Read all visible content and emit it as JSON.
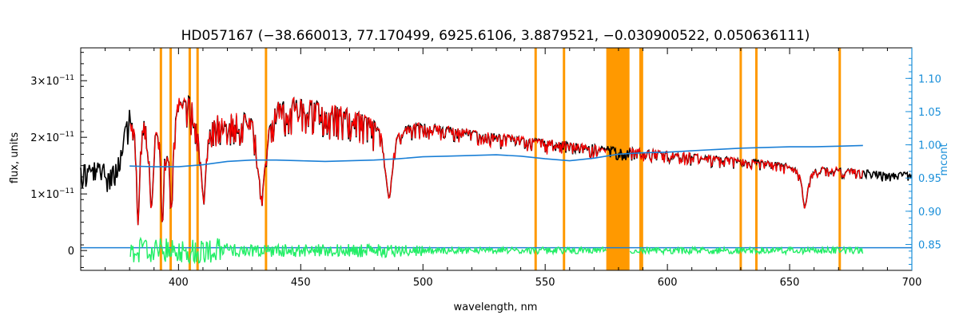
{
  "chart_data": {
    "type": "line",
    "title": "HD057167    (−38.660013, 77.170499, 6925.6106, 3.8879521, −0.030900522, 0.050636111)",
    "xlabel": "wavelength, nm",
    "ylabel": "flux, units",
    "y2label": "mcont",
    "xlim": [
      360,
      700
    ],
    "ylim": [
      -3.5e-12,
      3.58e-11
    ],
    "y2lim": [
      0.811,
      1.146
    ],
    "x_ticks": [
      400,
      450,
      500,
      550,
      600,
      650,
      700
    ],
    "x_tick_labels": [
      "400",
      "450",
      "500",
      "550",
      "600",
      "650",
      "700"
    ],
    "y_ticks": [
      0,
      1e-11,
      2e-11,
      3e-11
    ],
    "y_tick_labels": [
      {
        "mant": "0",
        "exp": ""
      },
      {
        "mant": "1×10",
        "exp": "−11"
      },
      {
        "mant": "2×10",
        "exp": "−11"
      },
      {
        "mant": "3×10",
        "exp": "−11"
      }
    ],
    "y2_ticks": [
      0.85,
      0.9,
      0.95,
      1.0,
      1.05,
      1.1
    ],
    "y2_tick_labels": [
      "0.85",
      "0.90",
      "0.95",
      "1.00",
      "1.05",
      "1.10"
    ],
    "grid": false,
    "colors": {
      "observed": "#000000",
      "model": "#ff0000",
      "residual": "#22ee66",
      "continuum": "#1a7fd6",
      "mask": "#ff9900",
      "right_axis": "#1a8fd9"
    },
    "mask_lines": [
      392.8,
      396.8,
      404.6,
      407.8,
      435.8,
      546.1,
      557.7,
      589.0,
      589.6,
      630.0,
      636.4,
      670.5
    ],
    "mask_band": [
      575.0,
      584.5
    ],
    "continuum": {
      "x": [
        380,
        390,
        400,
        410,
        420,
        430,
        440,
        450,
        460,
        470,
        480,
        490,
        500,
        510,
        520,
        530,
        540,
        550,
        560,
        570,
        580,
        590,
        600,
        610,
        620,
        630,
        640,
        650,
        660,
        670,
        680
      ],
      "y": [
        0.968,
        0.967,
        0.967,
        0.97,
        0.975,
        0.977,
        0.977,
        0.976,
        0.975,
        0.976,
        0.977,
        0.979,
        0.982,
        0.983,
        0.984,
        0.985,
        0.983,
        0.979,
        0.976,
        0.98,
        0.986,
        0.988,
        0.989,
        0.991,
        0.993,
        0.995,
        0.996,
        0.997,
        0.997,
        0.998,
        0.999
      ]
    },
    "continuum_baseline": 0.845,
    "envelope": {
      "x": [
        360,
        375,
        380,
        385,
        390,
        395,
        400,
        405,
        410,
        415,
        420,
        425,
        430,
        435,
        440,
        450,
        460,
        470,
        480,
        490,
        500,
        510,
        520,
        530,
        540,
        550,
        560,
        570,
        580,
        590,
        600,
        610,
        620,
        630,
        640,
        650,
        660,
        670,
        680,
        690,
        700
      ],
      "y": [
        1.55e-11,
        1.6e-11,
        2.5e-11,
        2.7e-11,
        2.75e-11,
        2.85e-11,
        2.95e-11,
        2.9e-11,
        2.7e-11,
        2.55e-11,
        2.45e-11,
        2.5e-11,
        2.6e-11,
        2.5e-11,
        2.75e-11,
        2.7e-11,
        2.6e-11,
        2.5e-11,
        2.4e-11,
        2.3e-11,
        2.25e-11,
        2.18e-11,
        2.12e-11,
        2.05e-11,
        2e-11,
        1.95e-11,
        1.9e-11,
        1.86e-11,
        1.82e-11,
        1.78e-11,
        1.74e-11,
        1.7e-11,
        1.66e-11,
        1.62e-11,
        1.58e-11,
        1.54e-11,
        1.5e-11,
        1.46e-11,
        1.42e-11,
        1.39e-11,
        1.37e-11
      ]
    },
    "absorption_lines": [
      {
        "x": 383.5,
        "depth": 0.78,
        "width": 0.8
      },
      {
        "x": 388.9,
        "depth": 0.7,
        "width": 1.0
      },
      {
        "x": 393.4,
        "depth": 0.8,
        "width": 0.8
      },
      {
        "x": 397.0,
        "depth": 0.72,
        "width": 1.0
      },
      {
        "x": 410.2,
        "depth": 0.62,
        "width": 1.6
      },
      {
        "x": 434.0,
        "depth": 0.62,
        "width": 1.8
      },
      {
        "x": 486.1,
        "depth": 0.58,
        "width": 1.8
      },
      {
        "x": 656.3,
        "depth": 0.48,
        "width": 1.4
      }
    ]
  }
}
